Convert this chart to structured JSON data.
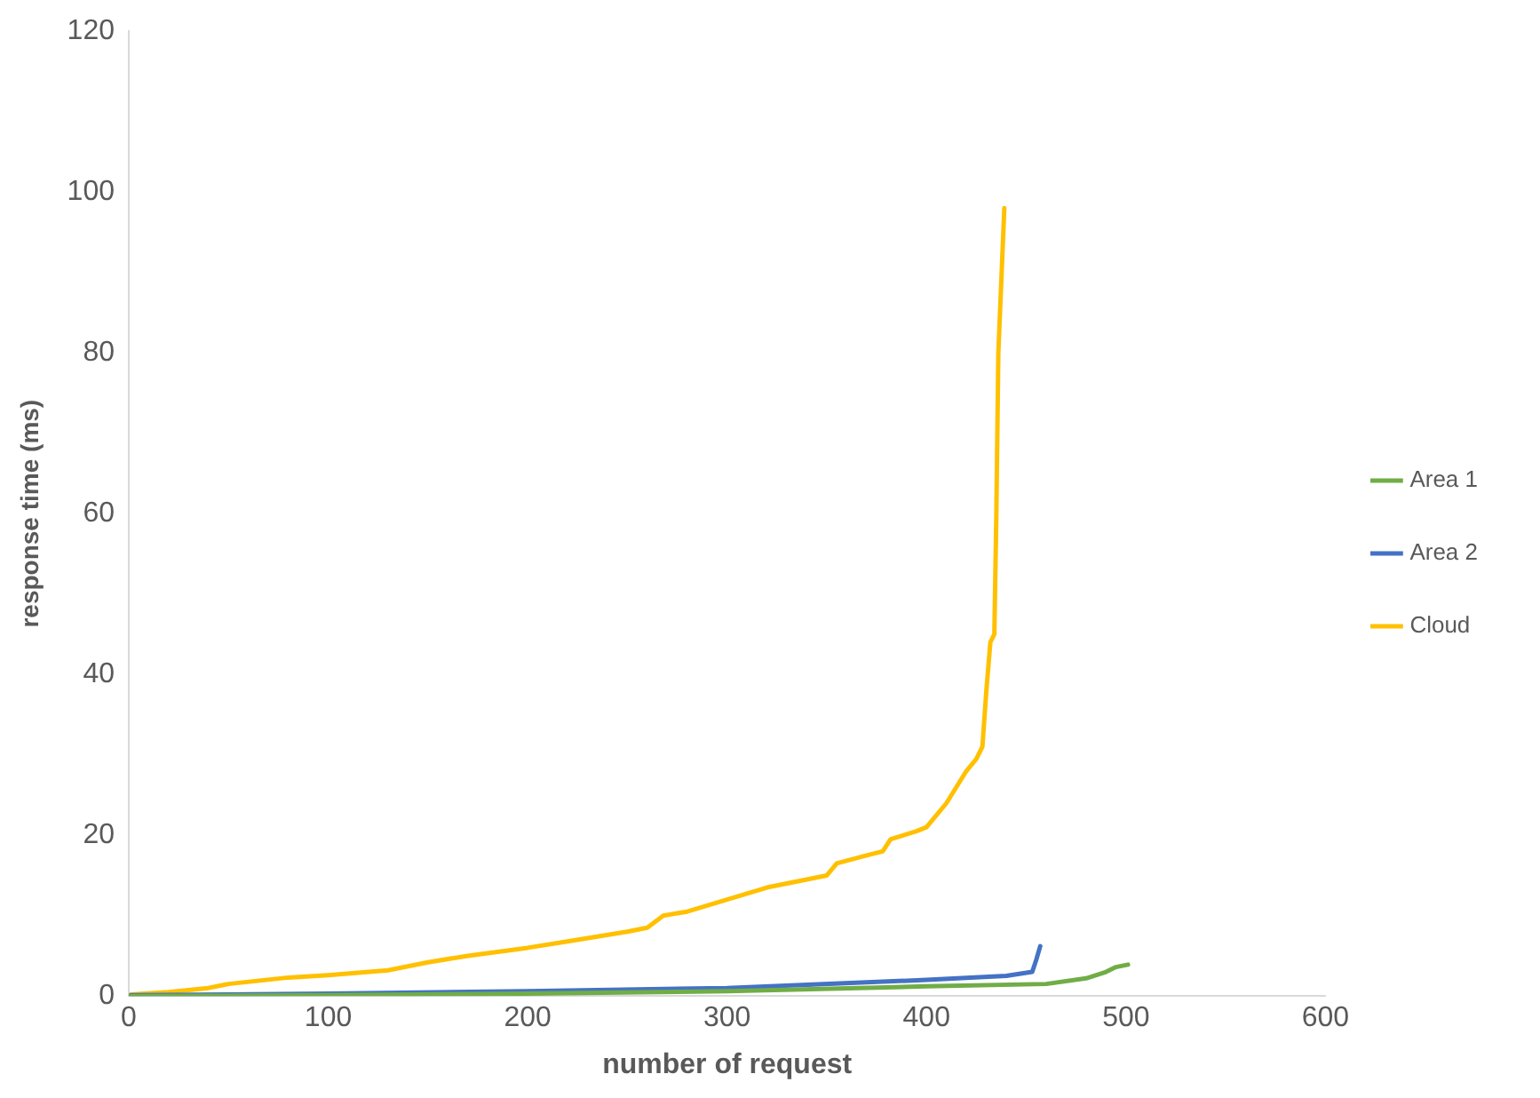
{
  "chart_data": {
    "type": "line",
    "xlabel": "number of request",
    "ylabel": "response time (ms)",
    "xlim": [
      0,
      600
    ],
    "xticks": [
      0,
      100,
      200,
      300,
      400,
      500,
      600
    ],
    "ylim": [
      0,
      120
    ],
    "yticks": [
      0,
      20,
      40,
      60,
      80,
      100,
      120
    ],
    "grid": false,
    "legend": "right",
    "marker": "none",
    "line_style": "solid",
    "series": [
      {
        "name": "Area 1",
        "color": "#70ad47",
        "x": [
          1,
          100,
          200,
          300,
          400,
          460,
          480,
          490,
          495,
          501
        ],
        "values": [
          0,
          0.1,
          0.3,
          0.6,
          1.2,
          1.5,
          2.2,
          3.0,
          3.6,
          3.9
        ]
      },
      {
        "name": "Area 2",
        "color": "#4472c4",
        "x": [
          1,
          100,
          200,
          300,
          400,
          440,
          453,
          455,
          457
        ],
        "values": [
          0.1,
          0.3,
          0.6,
          1.0,
          2.0,
          2.5,
          3.0,
          4.5,
          6.2
        ]
      },
      {
        "name": "Cloud",
        "color": "#ffc000",
        "x": [
          1,
          20,
          40,
          50,
          80,
          100,
          130,
          150,
          170,
          200,
          220,
          250,
          260,
          268,
          280,
          300,
          320,
          340,
          350,
          355,
          370,
          378,
          382,
          395,
          400,
          410,
          420,
          425,
          428,
          430,
          432,
          434,
          435,
          436,
          439
        ],
        "values": [
          0.2,
          0.5,
          1.0,
          1.5,
          2.3,
          2.6,
          3.2,
          4.2,
          5.0,
          6.0,
          6.8,
          8.0,
          8.5,
          10,
          10.5,
          12,
          13.5,
          14.5,
          15,
          16.5,
          17.5,
          18,
          19.5,
          20.5,
          21,
          24,
          28,
          29.5,
          31,
          38,
          44,
          45,
          60,
          80,
          98
        ]
      }
    ]
  }
}
